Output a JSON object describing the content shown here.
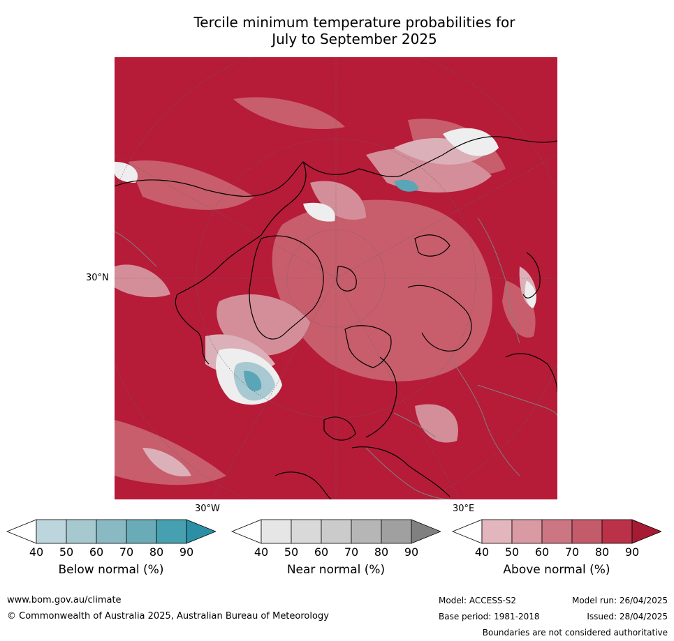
{
  "title": {
    "line1": "Tercile minimum temperature probabilities for",
    "line2": "July to September 2025"
  },
  "map": {
    "projection": "north-polar-stereographic",
    "lat_label": "30°N",
    "lon_labels": [
      "30°W",
      "30°E"
    ],
    "dominant_category": "Above normal",
    "colors": {
      "above_90": "#b61b38",
      "above_80": "#c33a52",
      "above_70": "#c9616f",
      "above_60": "#d38e99",
      "above_50": "#dcb0b8",
      "near": "#e6e6e6",
      "below_50": "#a8c9d1",
      "below_70": "#5aa6b6",
      "coast": "#000000",
      "border": "#808080"
    }
  },
  "colorbars": [
    {
      "label": "Below normal (%)",
      "ticks": [
        "40",
        "50",
        "60",
        "70",
        "80",
        "90"
      ],
      "colors": [
        "#ffffff",
        "#bdd6dd",
        "#a6c8cf",
        "#89b9c3",
        "#6aabb8",
        "#47a0b0",
        "#2b8fa5"
      ]
    },
    {
      "label": "Near normal (%)",
      "ticks": [
        "40",
        "50",
        "60",
        "70",
        "80",
        "90"
      ],
      "colors": [
        "#ffffff",
        "#e6e6e6",
        "#d9d9d9",
        "#cbcbcb",
        "#b6b6b6",
        "#a0a0a0",
        "#808080"
      ]
    },
    {
      "label": "Above normal (%)",
      "ticks": [
        "40",
        "50",
        "60",
        "70",
        "80",
        "90"
      ],
      "colors": [
        "#ffffff",
        "#e3b6bd",
        "#d99aa4",
        "#cd7683",
        "#c45b6b",
        "#bb3248",
        "#a61a33"
      ]
    }
  ],
  "footer": {
    "website": "www.bom.gov.au/climate",
    "copyright": "© Commonwealth of Australia 2025, Australian Bureau of Meteorology",
    "model": "Model: ACCESS-S2",
    "base_period": "Base period: 1981-2018",
    "model_run": "Model run: 26/04/2025",
    "issued": "Issued: 28/04/2025",
    "disclaimer": "Boundaries are not considered authoritative"
  }
}
